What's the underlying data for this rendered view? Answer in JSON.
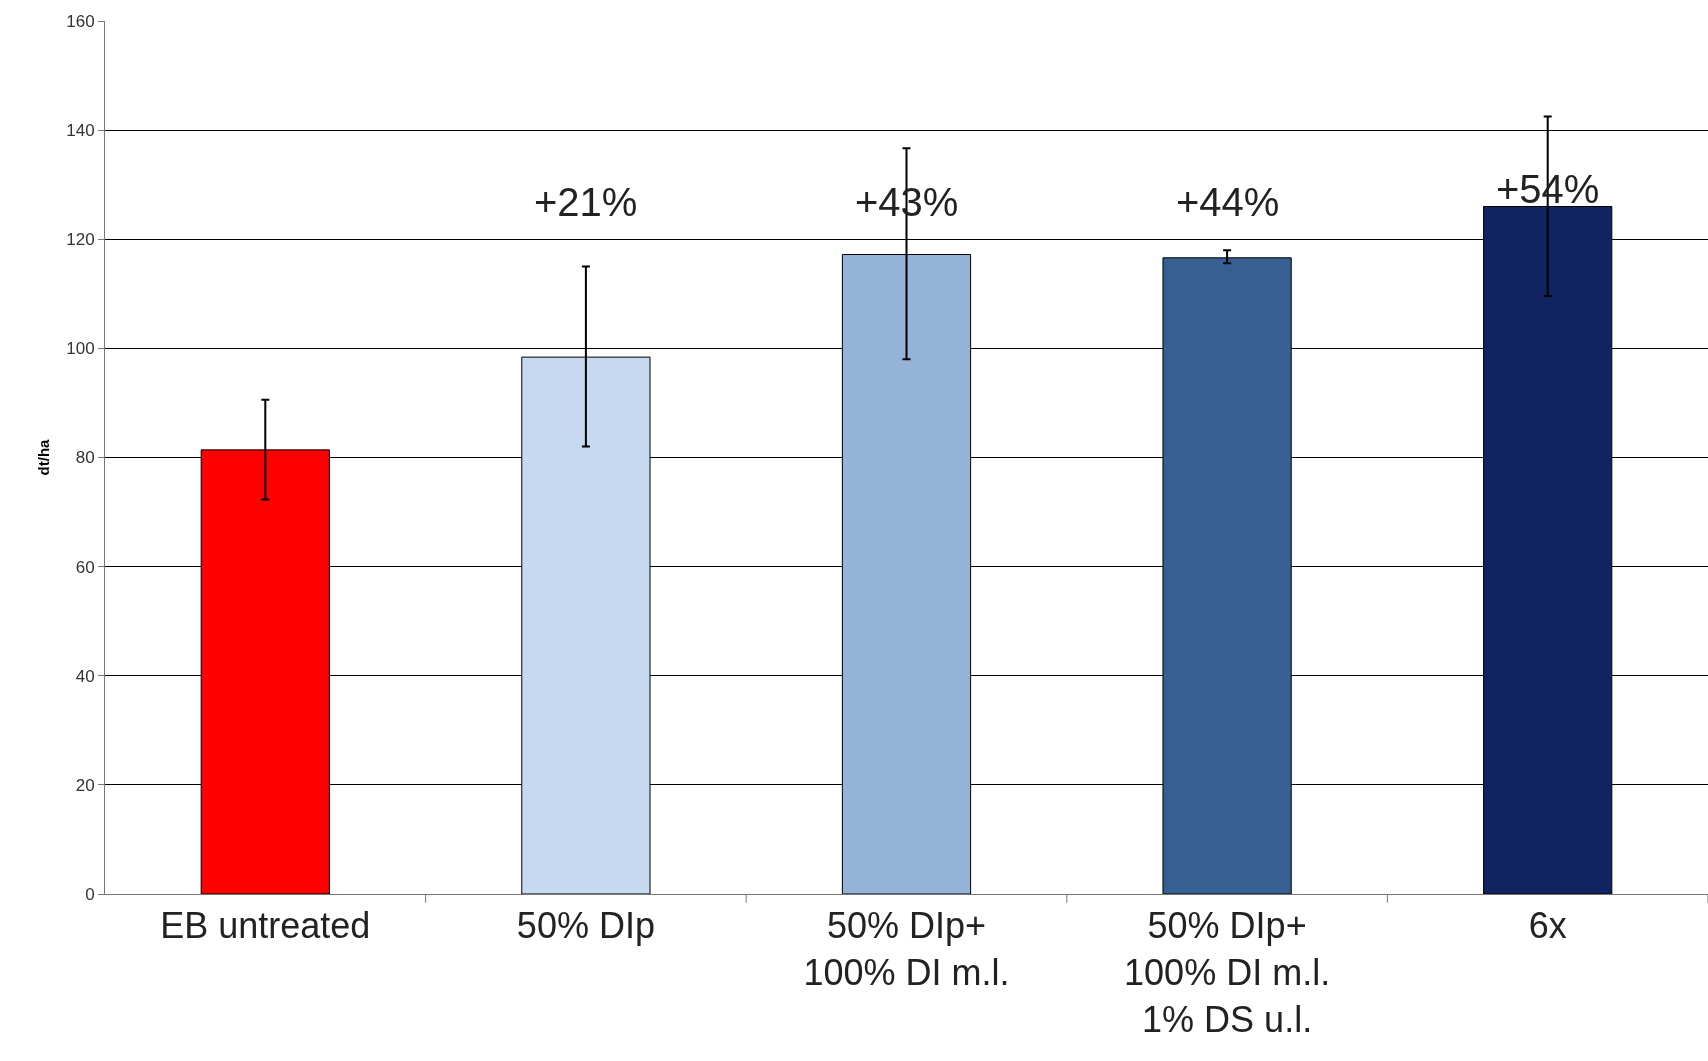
{
  "chart_data": {
    "type": "bar",
    "ylabel": "dt/ha",
    "categories": [
      "EB untreated",
      "50% DIp",
      "50% DIp+\n100% DI m.l.",
      "50% DIp+\n100% DI m.l.\n1% DS u.l.",
      "6x"
    ],
    "values": [
      81.4,
      98.4,
      117.2,
      116.6,
      126
    ],
    "colors": [
      "#ff0000",
      "#c6d9f0",
      "#95b3d7",
      "#366092",
      "#0f2460"
    ],
    "errors": [
      [
        72.3,
        90.6
      ],
      [
        82,
        115
      ],
      [
        98,
        136.7
      ],
      [
        115.6,
        118
      ],
      [
        109.6,
        142.5
      ]
    ],
    "ylim": [
      0,
      160
    ],
    "yticks": [
      0,
      20,
      40,
      60,
      80,
      100,
      120,
      140,
      160
    ],
    "grid": "y",
    "annotations": [
      "+21%",
      "+43%",
      "+44%",
      "+54%"
    ]
  }
}
